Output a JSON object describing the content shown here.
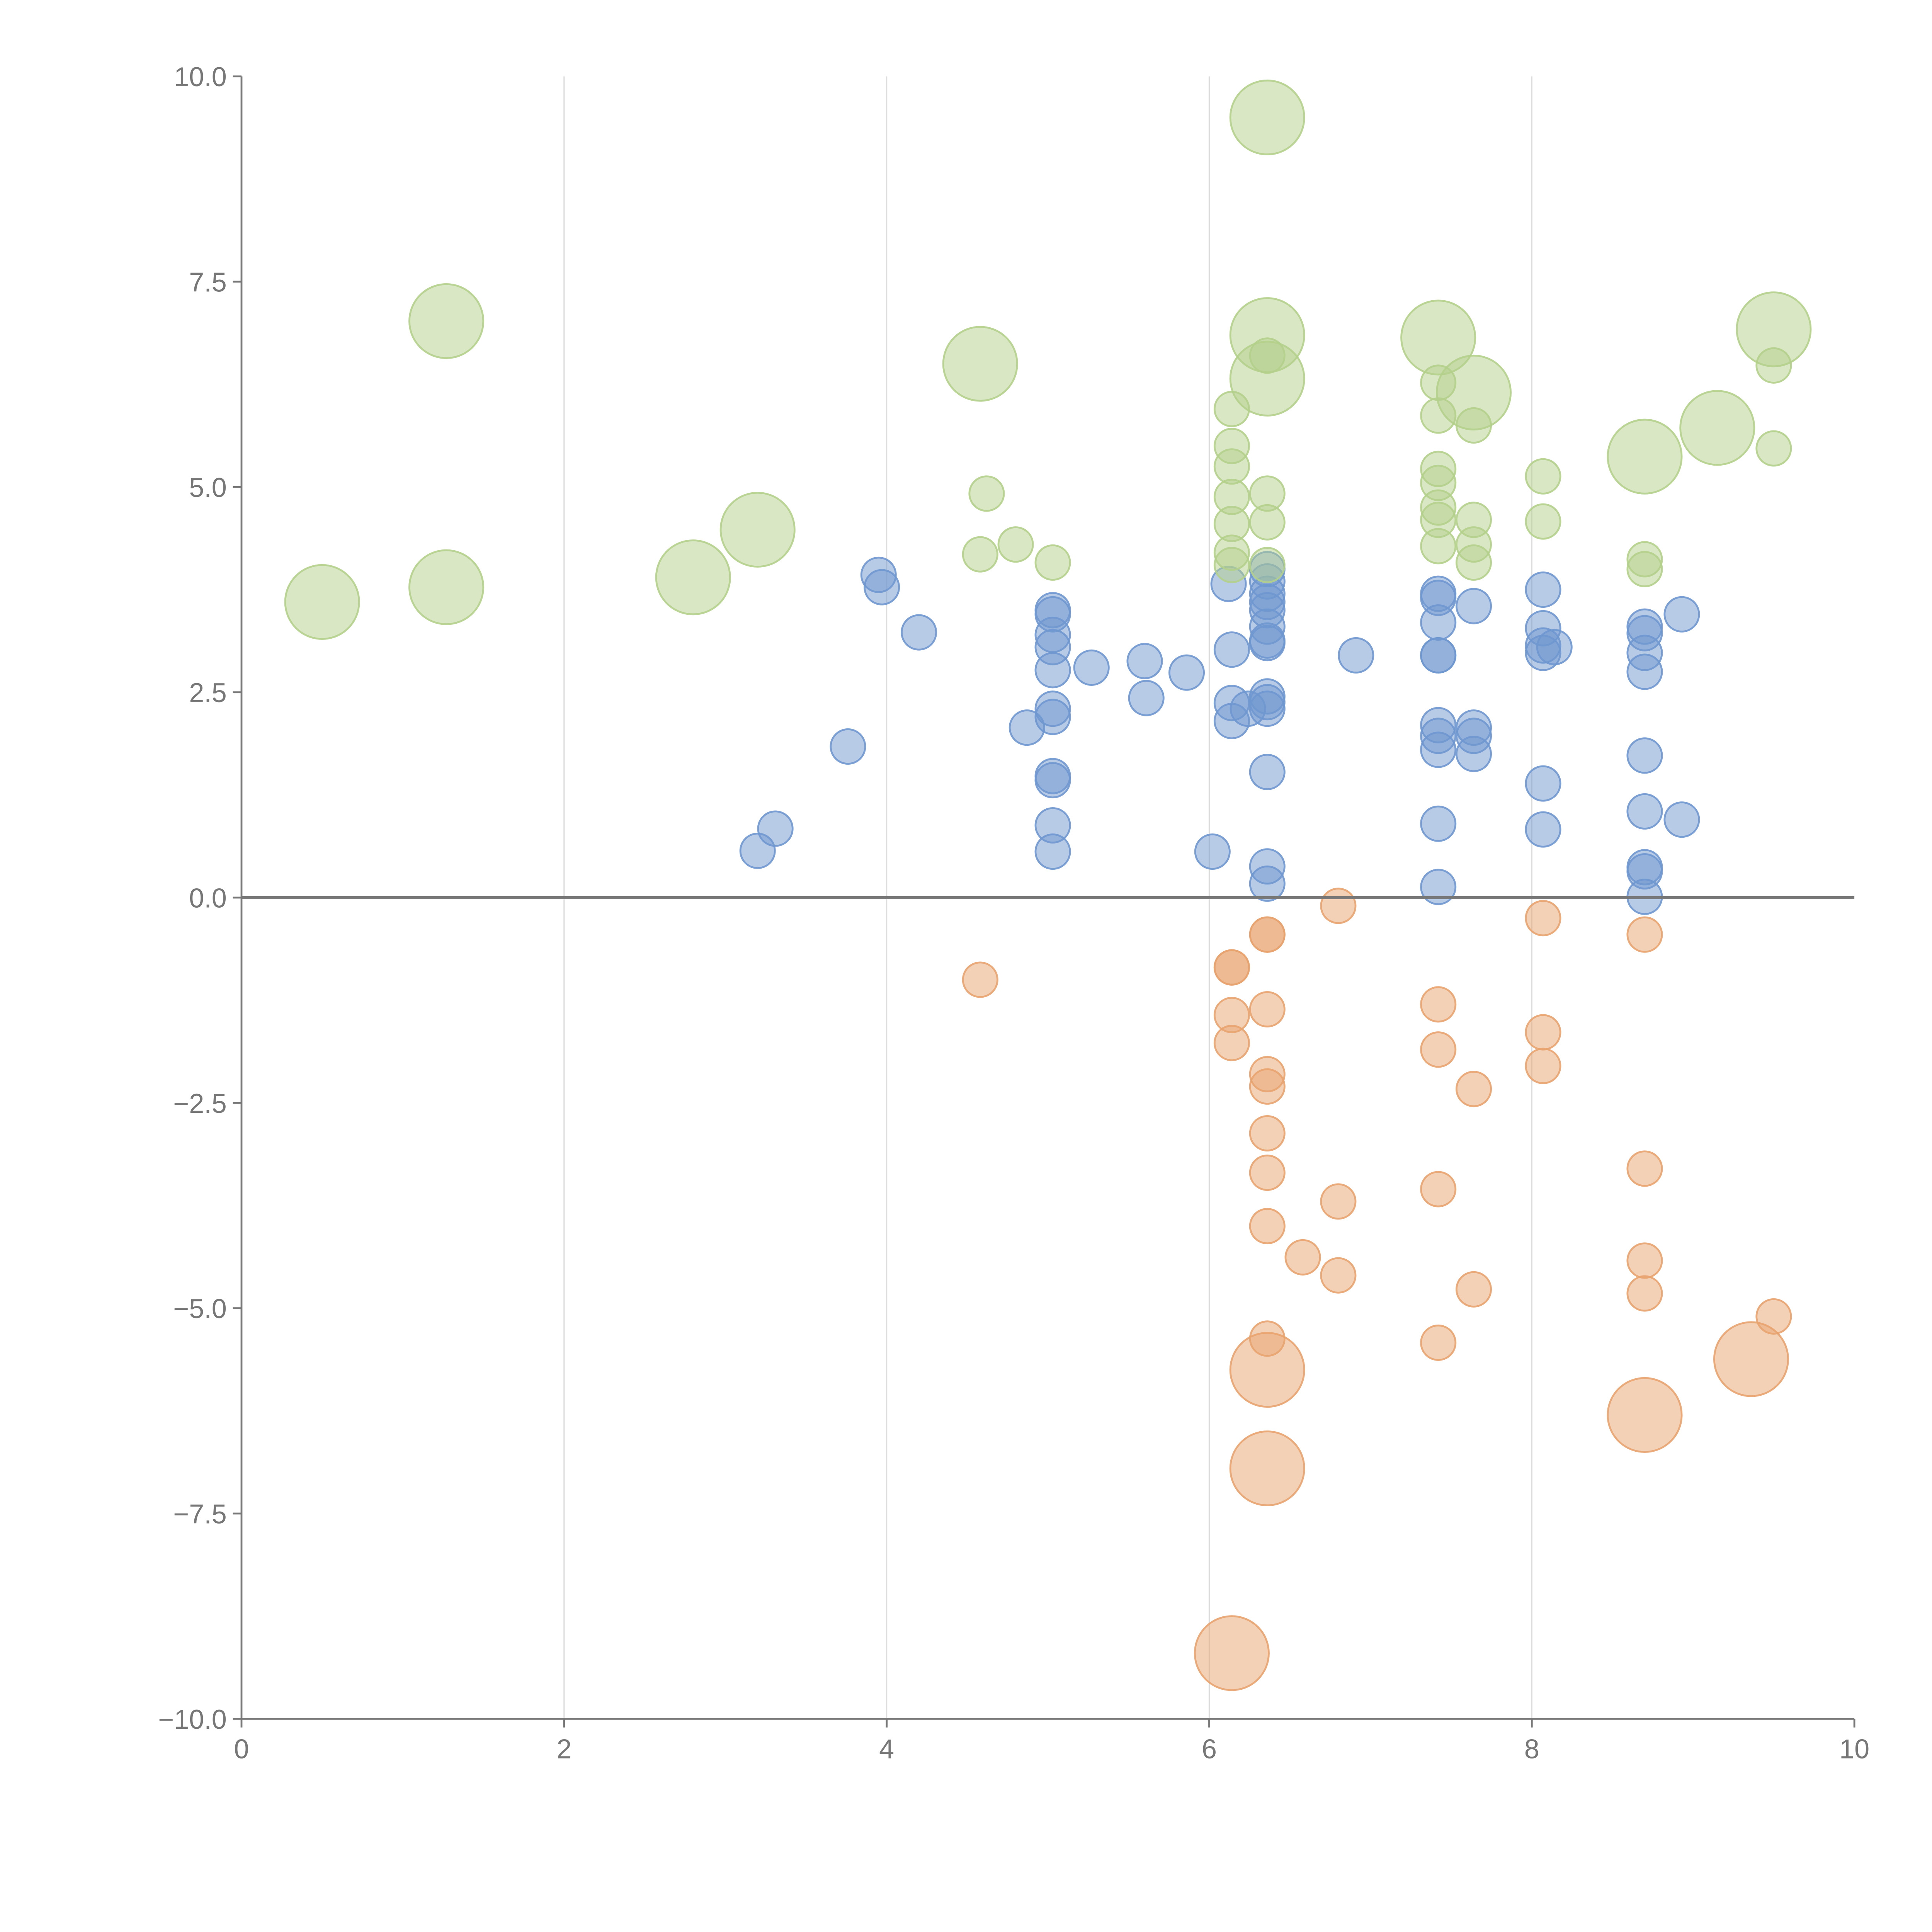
{
  "chart_data": {
    "type": "scatter",
    "title": "",
    "xlabel": "",
    "ylabel": "",
    "xlim": [
      0,
      10
    ],
    "ylim": [
      -10,
      10
    ],
    "grid": "vertical",
    "x_ticks": [
      "0",
      "2",
      "4",
      "6",
      "8",
      "10"
    ],
    "x_tick_values": [
      0,
      2,
      4,
      6,
      8,
      10
    ],
    "y_ticks": [
      "10.0",
      "7.5",
      "5.0",
      "2.5",
      "0.0",
      "−2.5",
      "−5.0",
      "−7.5",
      "−10.0"
    ],
    "y_tick_values": [
      10,
      7.5,
      5,
      2.5,
      0,
      -2.5,
      -5,
      -7.5,
      -10
    ],
    "zero_line": 0,
    "point_format": "[x, y, size]",
    "series": [
      {
        "name": "blue",
        "color": "#6f97cf",
        "points": [
          [
            3.95,
            3.93,
            1
          ],
          [
            3.97,
            3.78,
            1
          ],
          [
            4.2,
            3.23,
            1
          ],
          [
            3.76,
            1.84,
            1
          ],
          [
            3.2,
            0.57,
            1
          ],
          [
            3.31,
            0.84,
            1
          ],
          [
            4.87,
            2.07,
            1
          ],
          [
            5.03,
            3.5,
            1
          ],
          [
            5.03,
            3.45,
            1
          ],
          [
            5.03,
            3.2,
            1
          ],
          [
            5.03,
            3.05,
            1
          ],
          [
            5.03,
            2.77,
            1
          ],
          [
            5.03,
            2.3,
            1
          ],
          [
            5.03,
            2.2,
            1
          ],
          [
            5.03,
            1.48,
            1
          ],
          [
            5.03,
            1.43,
            1
          ],
          [
            5.03,
            0.88,
            1
          ],
          [
            5.03,
            0.56,
            1
          ],
          [
            5.27,
            2.8,
            1
          ],
          [
            5.6,
            2.88,
            1
          ],
          [
            5.61,
            2.43,
            1
          ],
          [
            5.86,
            2.74,
            1
          ],
          [
            6.02,
            0.56,
            1
          ],
          [
            6.12,
            3.82,
            1
          ],
          [
            6.14,
            3.02,
            1
          ],
          [
            6.14,
            2.37,
            1
          ],
          [
            6.14,
            2.15,
            1
          ],
          [
            6.24,
            2.3,
            1
          ],
          [
            6.36,
            4.0,
            1
          ],
          [
            6.36,
            3.85,
            1
          ],
          [
            6.36,
            3.7,
            1
          ],
          [
            6.36,
            3.6,
            1
          ],
          [
            6.36,
            3.5,
            1
          ],
          [
            6.36,
            3.3,
            1
          ],
          [
            6.36,
            3.13,
            1
          ],
          [
            6.36,
            3.1,
            1
          ],
          [
            6.36,
            2.45,
            1
          ],
          [
            6.36,
            2.38,
            1
          ],
          [
            6.36,
            2.3,
            1
          ],
          [
            6.36,
            1.53,
            1
          ],
          [
            6.36,
            0.38,
            1
          ],
          [
            6.36,
            0.17,
            1
          ],
          [
            6.91,
            2.95,
            1
          ],
          [
            7.42,
            3.7,
            1
          ],
          [
            7.42,
            3.65,
            1
          ],
          [
            7.42,
            3.35,
            1
          ],
          [
            7.42,
            2.95,
            1
          ],
          [
            7.42,
            2.95,
            1
          ],
          [
            7.42,
            2.1,
            1
          ],
          [
            7.42,
            1.97,
            1
          ],
          [
            7.42,
            1.8,
            1
          ],
          [
            7.42,
            0.9,
            1
          ],
          [
            7.42,
            0.13,
            1
          ],
          [
            7.64,
            3.55,
            1
          ],
          [
            7.64,
            2.07,
            1
          ],
          [
            7.64,
            1.97,
            1
          ],
          [
            7.64,
            1.75,
            1
          ],
          [
            8.07,
            3.75,
            1
          ],
          [
            8.07,
            3.28,
            1
          ],
          [
            8.07,
            3.07,
            1
          ],
          [
            8.07,
            2.98,
            1
          ],
          [
            8.14,
            3.05,
            1
          ],
          [
            8.07,
            1.39,
            1
          ],
          [
            8.07,
            0.83,
            1
          ],
          [
            8.7,
            3.3,
            1
          ],
          [
            8.7,
            3.22,
            1
          ],
          [
            8.7,
            2.98,
            1
          ],
          [
            8.7,
            2.75,
            1
          ],
          [
            8.7,
            1.73,
            1
          ],
          [
            8.7,
            1.05,
            1
          ],
          [
            8.7,
            0.37,
            1
          ],
          [
            8.7,
            0.32,
            1
          ],
          [
            8.7,
            0.01,
            1
          ],
          [
            8.93,
            3.45,
            1
          ],
          [
            8.93,
            0.95,
            1
          ]
        ]
      },
      {
        "name": "orange",
        "color": "#e8a36f",
        "points": [
          [
            6.8,
            -0.1,
            1
          ],
          [
            6.14,
            -0.85,
            1
          ],
          [
            6.14,
            -0.85,
            1
          ],
          [
            6.36,
            -0.45,
            1
          ],
          [
            6.36,
            -0.45,
            1
          ],
          [
            4.58,
            -1.0,
            1
          ],
          [
            6.14,
            -1.43,
            1
          ],
          [
            6.14,
            -1.77,
            1
          ],
          [
            6.36,
            -1.36,
            1
          ],
          [
            6.36,
            -2.15,
            1
          ],
          [
            6.36,
            -2.3,
            1
          ],
          [
            6.36,
            -2.87,
            1
          ],
          [
            6.36,
            -3.35,
            1
          ],
          [
            6.36,
            -4.0,
            1
          ],
          [
            6.36,
            -5.37,
            1
          ],
          [
            6.58,
            -4.38,
            1
          ],
          [
            6.8,
            -3.7,
            1
          ],
          [
            6.8,
            -4.6,
            1
          ],
          [
            7.42,
            -1.3,
            1
          ],
          [
            7.42,
            -1.85,
            1
          ],
          [
            7.42,
            -3.55,
            1
          ],
          [
            7.42,
            -5.42,
            1
          ],
          [
            7.64,
            -2.33,
            1
          ],
          [
            7.64,
            -4.77,
            1
          ],
          [
            8.07,
            -0.25,
            1
          ],
          [
            8.07,
            -1.64,
            1
          ],
          [
            8.07,
            -2.05,
            1
          ],
          [
            8.7,
            -0.45,
            1
          ],
          [
            8.7,
            -3.3,
            1
          ],
          [
            8.7,
            -4.42,
            1
          ],
          [
            8.7,
            -4.82,
            1
          ],
          [
            9.5,
            -5.1,
            1
          ],
          [
            6.36,
            -5.75,
            2
          ],
          [
            6.36,
            -6.95,
            2
          ],
          [
            6.14,
            -9.2,
            2
          ],
          [
            8.7,
            -6.3,
            2
          ],
          [
            9.36,
            -5.62,
            2
          ]
        ]
      },
      {
        "name": "green",
        "color": "#b4d08b",
        "points": [
          [
            4.58,
            4.18,
            1
          ],
          [
            4.62,
            4.92,
            1
          ],
          [
            4.8,
            4.3,
            1
          ],
          [
            5.03,
            4.08,
            1
          ],
          [
            6.14,
            5.95,
            1
          ],
          [
            6.14,
            5.5,
            1
          ],
          [
            6.14,
            5.25,
            1
          ],
          [
            6.14,
            4.88,
            1
          ],
          [
            6.14,
            4.55,
            1
          ],
          [
            6.14,
            4.2,
            1
          ],
          [
            6.14,
            4.05,
            1
          ],
          [
            6.36,
            4.92,
            1
          ],
          [
            6.36,
            4.57,
            1
          ],
          [
            6.36,
            4.05,
            1
          ],
          [
            6.36,
            6.6,
            1
          ],
          [
            7.42,
            6.27,
            1
          ],
          [
            7.42,
            5.87,
            1
          ],
          [
            7.42,
            5.22,
            1
          ],
          [
            7.42,
            5.05,
            1
          ],
          [
            7.42,
            4.75,
            1
          ],
          [
            7.42,
            4.6,
            1
          ],
          [
            7.42,
            4.28,
            1
          ],
          [
            7.64,
            5.75,
            1
          ],
          [
            7.64,
            4.6,
            1
          ],
          [
            7.64,
            4.3,
            1
          ],
          [
            7.64,
            4.08,
            1
          ],
          [
            8.07,
            5.13,
            1
          ],
          [
            8.07,
            4.58,
            1
          ],
          [
            8.7,
            4.12,
            1
          ],
          [
            8.7,
            4.0,
            1
          ],
          [
            9.5,
            6.48,
            1
          ],
          [
            9.5,
            5.47,
            1
          ],
          [
            0.5,
            3.6,
            2
          ],
          [
            1.27,
            7.02,
            2
          ],
          [
            1.27,
            3.78,
            2
          ],
          [
            2.8,
            3.9,
            2
          ],
          [
            3.2,
            4.48,
            2
          ],
          [
            4.58,
            6.5,
            2
          ],
          [
            6.36,
            9.5,
            2
          ],
          [
            6.36,
            6.85,
            2
          ],
          [
            6.36,
            6.32,
            2
          ],
          [
            7.42,
            6.82,
            2
          ],
          [
            7.64,
            6.15,
            2
          ],
          [
            8.7,
            5.37,
            2
          ],
          [
            9.15,
            5.72,
            2
          ],
          [
            9.5,
            6.92,
            2
          ]
        ]
      }
    ]
  }
}
